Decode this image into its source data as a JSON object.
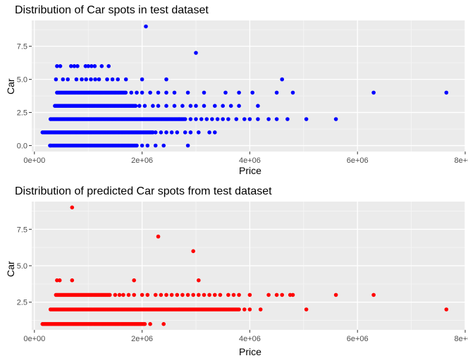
{
  "chart_data": [
    {
      "type": "scatter",
      "title": "Distribution of Car spots in test dataset",
      "xlabel": "Price",
      "ylabel": "Car",
      "xlim": [
        -50000,
        8000000
      ],
      "ylim": [
        -0.45,
        9.45
      ],
      "xticks": [
        0,
        2000000,
        4000000,
        6000000,
        8000000
      ],
      "xtick_labels": [
        "0e+00",
        "2e+06",
        "4e+06",
        "6e+06",
        "8e+06"
      ],
      "yticks": [
        0,
        2.5,
        5,
        7.5
      ],
      "ytick_labels": [
        "0.0",
        "2.5",
        "5.0",
        "7.5"
      ],
      "grid": true,
      "color": "#0000ff",
      "dense_bands": [
        {
          "y": 0,
          "from": 300000,
          "to": 1900000
        },
        {
          "y": 1,
          "from": 150000,
          "to": 2200000
        },
        {
          "y": 2,
          "from": 300000,
          "to": 2800000
        },
        {
          "y": 3,
          "from": 380000,
          "to": 1900000
        },
        {
          "y": 4,
          "from": 420000,
          "to": 1700000
        }
      ],
      "points": [
        {
          "x": 290000,
          "y": 0
        },
        {
          "x": 2000000,
          "y": 0
        },
        {
          "x": 2100000,
          "y": 0
        },
        {
          "x": 2250000,
          "y": 0
        },
        {
          "x": 2400000,
          "y": 0
        },
        {
          "x": 2850000,
          "y": 0
        },
        {
          "x": 2250000,
          "y": 1
        },
        {
          "x": 2350000,
          "y": 1
        },
        {
          "x": 2450000,
          "y": 1
        },
        {
          "x": 2550000,
          "y": 1
        },
        {
          "x": 2650000,
          "y": 1
        },
        {
          "x": 2800000,
          "y": 1
        },
        {
          "x": 2900000,
          "y": 1
        },
        {
          "x": 3050000,
          "y": 1
        },
        {
          "x": 3250000,
          "y": 1
        },
        {
          "x": 3350000,
          "y": 1
        },
        {
          "x": 2900000,
          "y": 2
        },
        {
          "x": 3000000,
          "y": 2
        },
        {
          "x": 3100000,
          "y": 2
        },
        {
          "x": 3200000,
          "y": 2
        },
        {
          "x": 3300000,
          "y": 2
        },
        {
          "x": 3400000,
          "y": 2
        },
        {
          "x": 3500000,
          "y": 2
        },
        {
          "x": 3600000,
          "y": 2
        },
        {
          "x": 3750000,
          "y": 2
        },
        {
          "x": 3900000,
          "y": 2
        },
        {
          "x": 4000000,
          "y": 2
        },
        {
          "x": 4150000,
          "y": 2
        },
        {
          "x": 4350000,
          "y": 2
        },
        {
          "x": 4500000,
          "y": 2
        },
        {
          "x": 4700000,
          "y": 2
        },
        {
          "x": 5050000,
          "y": 2
        },
        {
          "x": 5600000,
          "y": 2
        },
        {
          "x": 1950000,
          "y": 3
        },
        {
          "x": 2050000,
          "y": 3
        },
        {
          "x": 2200000,
          "y": 3
        },
        {
          "x": 2300000,
          "y": 3
        },
        {
          "x": 2450000,
          "y": 3
        },
        {
          "x": 2600000,
          "y": 3
        },
        {
          "x": 2750000,
          "y": 3
        },
        {
          "x": 2900000,
          "y": 3
        },
        {
          "x": 3000000,
          "y": 3
        },
        {
          "x": 3150000,
          "y": 3
        },
        {
          "x": 3350000,
          "y": 3
        },
        {
          "x": 3500000,
          "y": 3
        },
        {
          "x": 3650000,
          "y": 3
        },
        {
          "x": 3800000,
          "y": 3
        },
        {
          "x": 4150000,
          "y": 3
        },
        {
          "x": 1800000,
          "y": 4
        },
        {
          "x": 1900000,
          "y": 4
        },
        {
          "x": 2000000,
          "y": 4
        },
        {
          "x": 2150000,
          "y": 4
        },
        {
          "x": 2300000,
          "y": 4
        },
        {
          "x": 2450000,
          "y": 4
        },
        {
          "x": 2600000,
          "y": 4
        },
        {
          "x": 2850000,
          "y": 4
        },
        {
          "x": 3150000,
          "y": 4
        },
        {
          "x": 3550000,
          "y": 4
        },
        {
          "x": 3800000,
          "y": 4
        },
        {
          "x": 4050000,
          "y": 4
        },
        {
          "x": 4500000,
          "y": 4
        },
        {
          "x": 4800000,
          "y": 4
        },
        {
          "x": 6300000,
          "y": 4
        },
        {
          "x": 7650000,
          "y": 4
        },
        {
          "x": 400000,
          "y": 5
        },
        {
          "x": 530000,
          "y": 5
        },
        {
          "x": 620000,
          "y": 5
        },
        {
          "x": 780000,
          "y": 5
        },
        {
          "x": 880000,
          "y": 5
        },
        {
          "x": 960000,
          "y": 5
        },
        {
          "x": 1050000,
          "y": 5
        },
        {
          "x": 1130000,
          "y": 5
        },
        {
          "x": 1200000,
          "y": 5
        },
        {
          "x": 1350000,
          "y": 5
        },
        {
          "x": 1450000,
          "y": 5
        },
        {
          "x": 1550000,
          "y": 5
        },
        {
          "x": 1700000,
          "y": 5
        },
        {
          "x": 2000000,
          "y": 5
        },
        {
          "x": 2450000,
          "y": 5
        },
        {
          "x": 4600000,
          "y": 5
        },
        {
          "x": 420000,
          "y": 6
        },
        {
          "x": 480000,
          "y": 6
        },
        {
          "x": 680000,
          "y": 6
        },
        {
          "x": 740000,
          "y": 6
        },
        {
          "x": 800000,
          "y": 6
        },
        {
          "x": 950000,
          "y": 6
        },
        {
          "x": 1000000,
          "y": 6
        },
        {
          "x": 1060000,
          "y": 6
        },
        {
          "x": 1120000,
          "y": 6
        },
        {
          "x": 1250000,
          "y": 6
        },
        {
          "x": 1380000,
          "y": 6
        },
        {
          "x": 3000000,
          "y": 7
        },
        {
          "x": 2070000,
          "y": 9
        }
      ]
    },
    {
      "type": "scatter",
      "title": "Distribution of predicted Car spots from test dataset",
      "xlabel": "Price",
      "ylabel": "Car",
      "xlim": [
        -50000,
        8000000
      ],
      "ylim": [
        0.6,
        9.4
      ],
      "xticks": [
        0,
        2000000,
        4000000,
        6000000,
        8000000
      ],
      "xtick_labels": [
        "0e+00",
        "2e+06",
        "4e+06",
        "6e+06",
        "8e+06"
      ],
      "yticks": [
        2.5,
        5,
        7.5
      ],
      "ytick_labels": [
        "2.5",
        "5.0",
        "7.5"
      ],
      "grid": true,
      "color": "#ff0000",
      "dense_bands": [
        {
          "y": 1,
          "from": 150000,
          "to": 2050000
        },
        {
          "y": 2,
          "from": 300000,
          "to": 3800000
        },
        {
          "y": 3,
          "from": 400000,
          "to": 1400000
        }
      ],
      "points": [
        {
          "x": 2150000,
          "y": 1
        },
        {
          "x": 2400000,
          "y": 1
        },
        {
          "x": 3900000,
          "y": 2
        },
        {
          "x": 4000000,
          "y": 2
        },
        {
          "x": 4200000,
          "y": 2
        },
        {
          "x": 5050000,
          "y": 2
        },
        {
          "x": 7650000,
          "y": 2
        },
        {
          "x": 1500000,
          "y": 3
        },
        {
          "x": 1580000,
          "y": 3
        },
        {
          "x": 1650000,
          "y": 3
        },
        {
          "x": 1750000,
          "y": 3
        },
        {
          "x": 1850000,
          "y": 3
        },
        {
          "x": 2000000,
          "y": 3
        },
        {
          "x": 2100000,
          "y": 3
        },
        {
          "x": 2250000,
          "y": 3
        },
        {
          "x": 2350000,
          "y": 3
        },
        {
          "x": 2450000,
          "y": 3
        },
        {
          "x": 2550000,
          "y": 3
        },
        {
          "x": 2650000,
          "y": 3
        },
        {
          "x": 2750000,
          "y": 3
        },
        {
          "x": 2850000,
          "y": 3
        },
        {
          "x": 2950000,
          "y": 3
        },
        {
          "x": 3050000,
          "y": 3
        },
        {
          "x": 3150000,
          "y": 3
        },
        {
          "x": 3250000,
          "y": 3
        },
        {
          "x": 3350000,
          "y": 3
        },
        {
          "x": 3450000,
          "y": 3
        },
        {
          "x": 3600000,
          "y": 3
        },
        {
          "x": 3700000,
          "y": 3
        },
        {
          "x": 3800000,
          "y": 3
        },
        {
          "x": 4000000,
          "y": 3
        },
        {
          "x": 4350000,
          "y": 3
        },
        {
          "x": 4500000,
          "y": 3
        },
        {
          "x": 4600000,
          "y": 3
        },
        {
          "x": 4750000,
          "y": 3
        },
        {
          "x": 4800000,
          "y": 3
        },
        {
          "x": 5600000,
          "y": 3
        },
        {
          "x": 6300000,
          "y": 3
        },
        {
          "x": 420000,
          "y": 4
        },
        {
          "x": 470000,
          "y": 4
        },
        {
          "x": 700000,
          "y": 4
        },
        {
          "x": 1850000,
          "y": 4
        },
        {
          "x": 3050000,
          "y": 4
        },
        {
          "x": 2950000,
          "y": 6
        },
        {
          "x": 2300000,
          "y": 7
        },
        {
          "x": 700000,
          "y": 9
        }
      ]
    }
  ]
}
